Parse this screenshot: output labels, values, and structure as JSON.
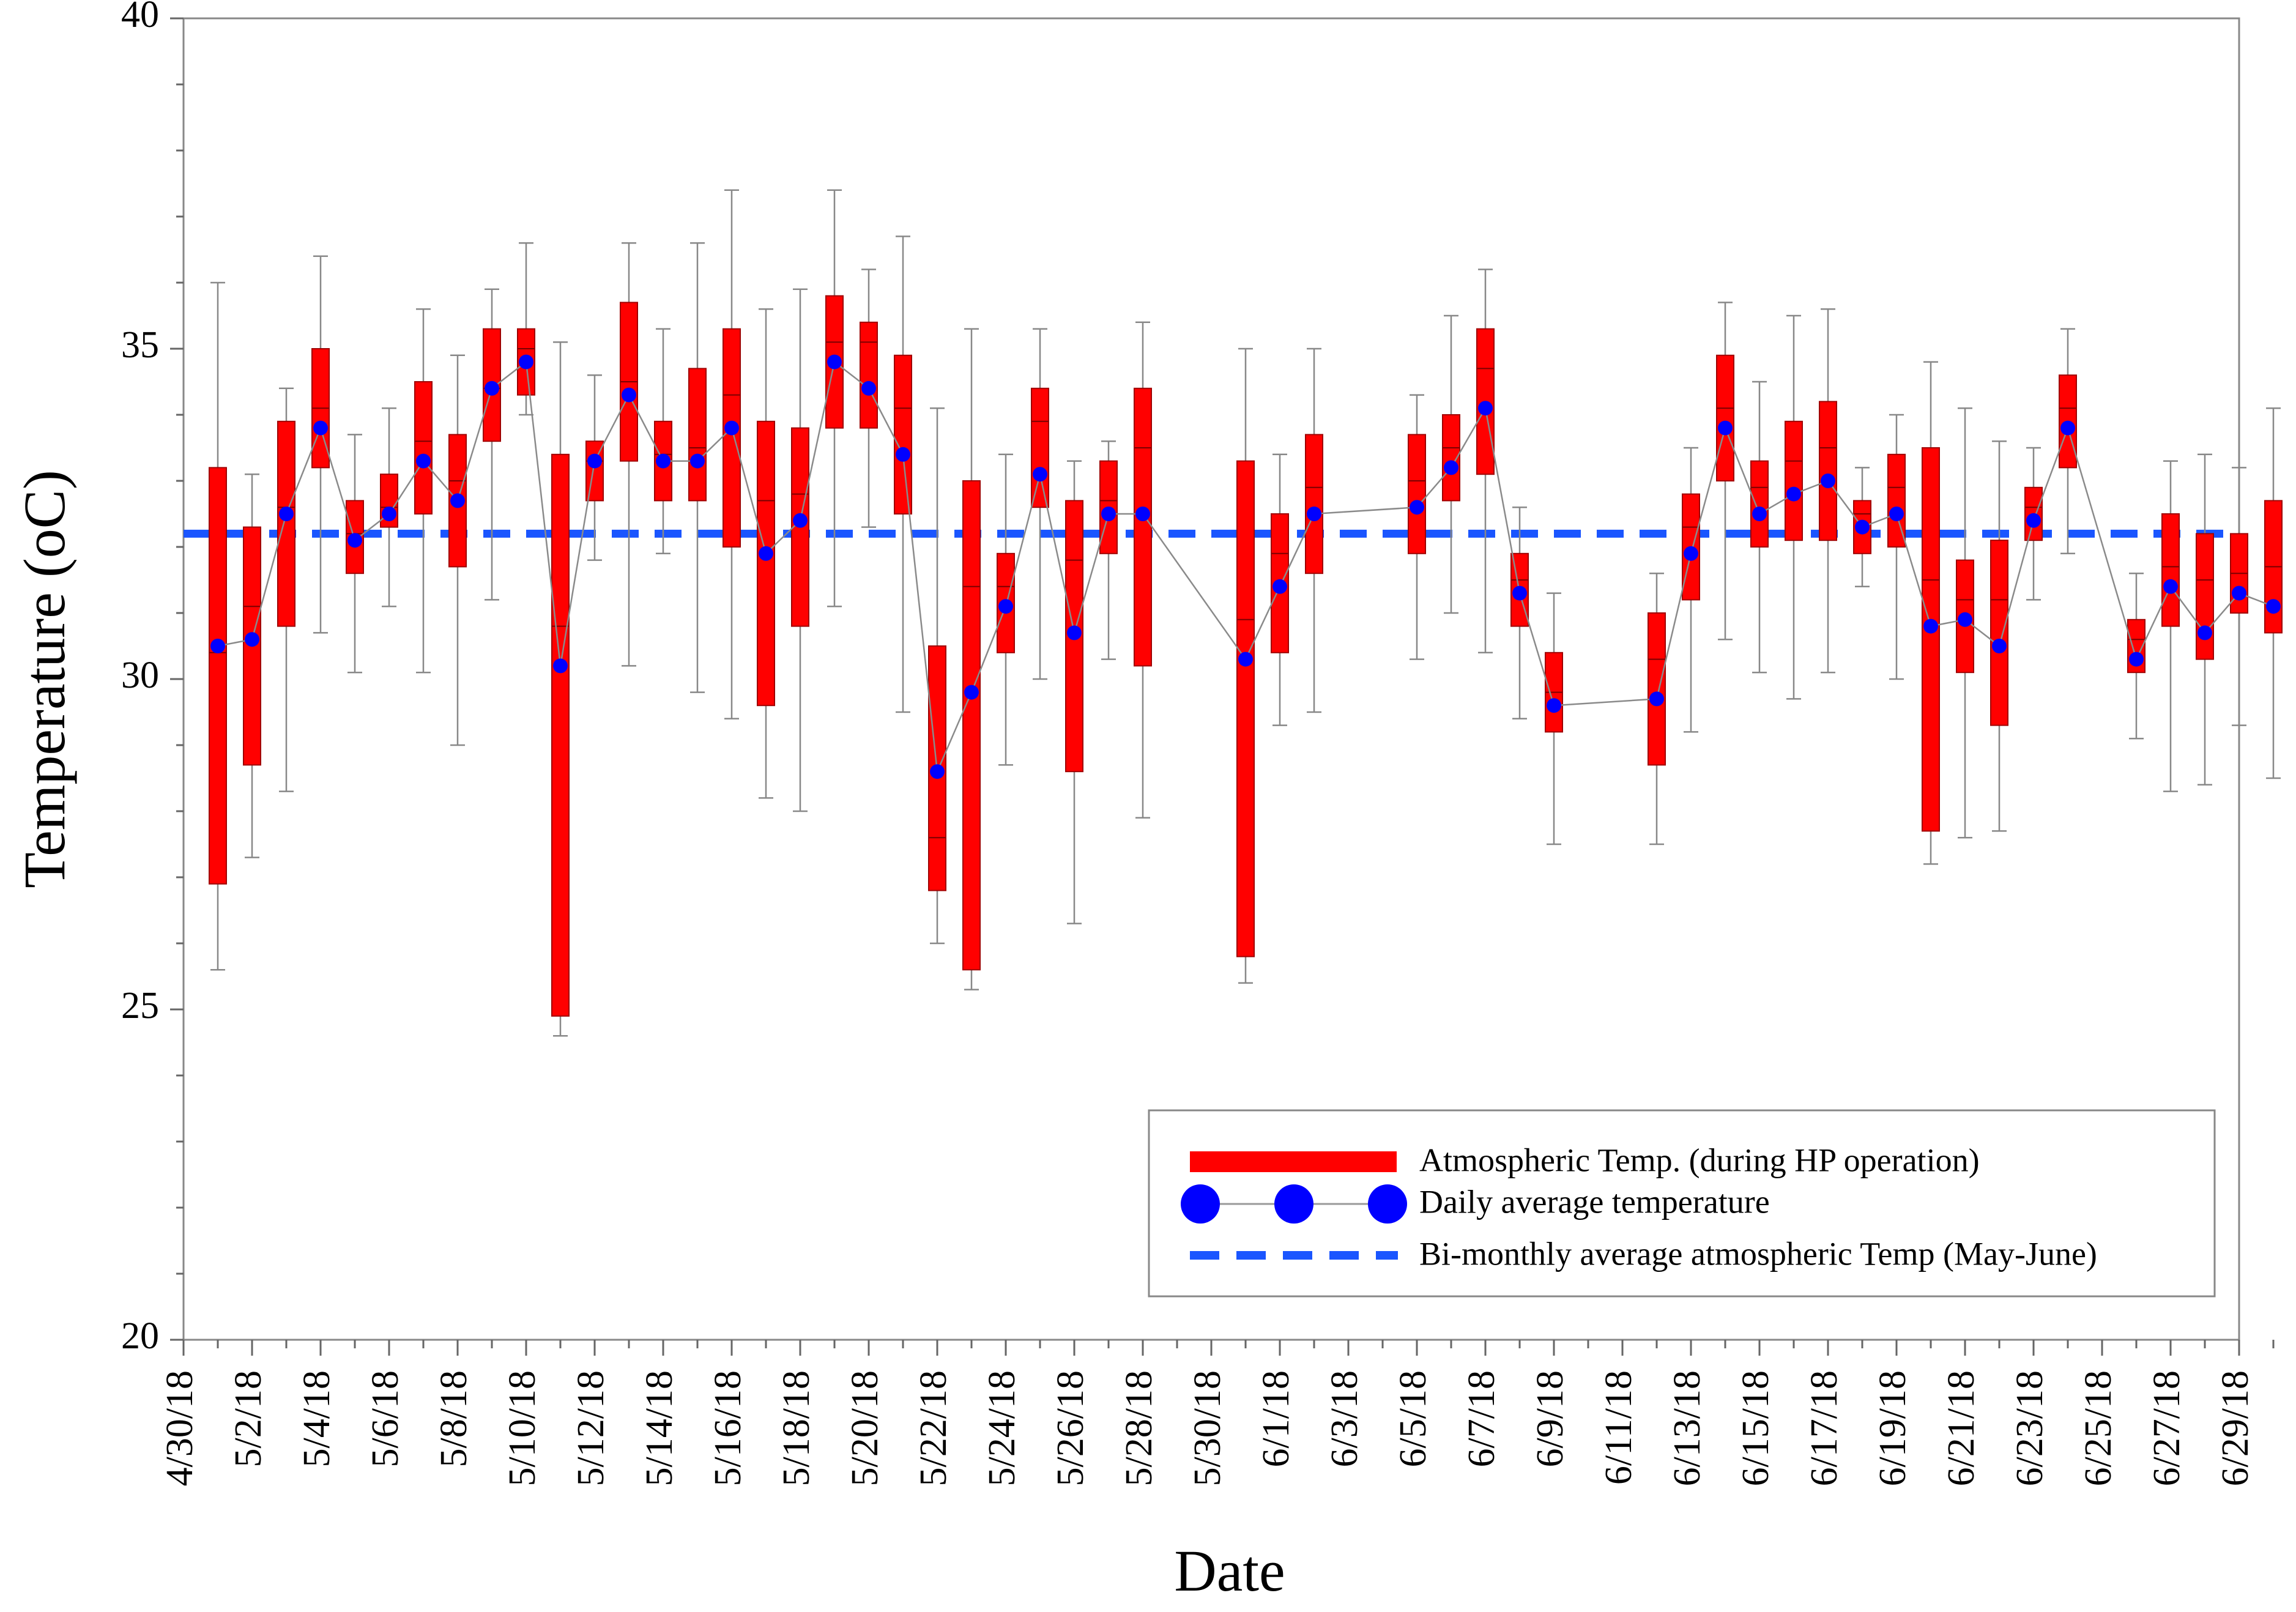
{
  "chart_data": {
    "type": "boxplot",
    "xlabel": "Date",
    "ylabel": "Temperature (oC)",
    "ylim": [
      20,
      40
    ],
    "y_ticks": [
      "20",
      "25",
      "30",
      "35",
      "40"
    ],
    "x_tick_labels": [
      "4/30/18",
      "5/2/18",
      "5/4/18",
      "5/6/18",
      "5/8/18",
      "5/10/18",
      "5/12/18",
      "5/14/18",
      "5/16/18",
      "5/18/18",
      "5/20/18",
      "5/22/18",
      "5/24/18",
      "5/26/18",
      "5/28/18",
      "5/30/18",
      "6/1/18",
      "6/3/18",
      "6/5/18",
      "6/7/18",
      "6/9/18",
      "6/11/18",
      "6/13/18",
      "6/15/18",
      "6/17/18",
      "6/19/18",
      "6/21/18",
      "6/23/18",
      "6/25/18",
      "6/27/18",
      "6/29/18"
    ],
    "bimonthly_average": 32.2,
    "legend": {
      "box": "Atmospheric Temp. (during HP operation)",
      "dots": "Daily average temperature",
      "dashed": "Bi-monthly average atmospheric Temp (May-June)"
    },
    "colors": {
      "box": "#ff0000",
      "dot": "#0000ff",
      "dashed": "#1a55ff"
    },
    "boxes": [
      {
        "day": 1,
        "wlo": 25.6,
        "q1": 26.9,
        "med": 30.4,
        "q3": 33.2,
        "whi": 36.0,
        "mean": 30.5
      },
      {
        "day": 2,
        "wlo": 27.3,
        "q1": 28.7,
        "med": 31.1,
        "q3": 32.3,
        "whi": 33.1,
        "mean": 30.6
      },
      {
        "day": 3,
        "wlo": 28.3,
        "q1": 30.8,
        "med": 32.6,
        "q3": 33.9,
        "whi": 34.4,
        "mean": 32.5
      },
      {
        "day": 4,
        "wlo": 30.7,
        "q1": 33.2,
        "med": 34.1,
        "q3": 35.0,
        "whi": 36.4,
        "mean": 33.8
      },
      {
        "day": 5,
        "wlo": 30.1,
        "q1": 31.6,
        "med": 32.2,
        "q3": 32.7,
        "whi": 33.7,
        "mean": 32.1
      },
      {
        "day": 6,
        "wlo": 31.1,
        "q1": 32.3,
        "med": 32.6,
        "q3": 33.1,
        "whi": 34.1,
        "mean": 32.5
      },
      {
        "day": 7,
        "wlo": 30.1,
        "q1": 32.5,
        "med": 33.6,
        "q3": 34.5,
        "whi": 35.6,
        "mean": 33.3
      },
      {
        "day": 8,
        "wlo": 29.0,
        "q1": 31.7,
        "med": 33.0,
        "q3": 33.7,
        "whi": 34.9,
        "mean": 32.7
      },
      {
        "day": 9,
        "wlo": 31.2,
        "q1": 33.6,
        "med": 34.4,
        "q3": 35.3,
        "whi": 35.9,
        "mean": 34.4
      },
      {
        "day": 10,
        "wlo": 34.0,
        "q1": 34.3,
        "med": 35.0,
        "q3": 35.3,
        "whi": 36.6,
        "mean": 34.8
      },
      {
        "day": 11,
        "wlo": 24.6,
        "q1": 24.9,
        "med": 30.8,
        "q3": 33.4,
        "whi": 35.1,
        "mean": 30.2
      },
      {
        "day": 12,
        "wlo": 31.8,
        "q1": 32.7,
        "med": 33.3,
        "q3": 33.6,
        "whi": 34.6,
        "mean": 33.3
      },
      {
        "day": 13,
        "wlo": 30.2,
        "q1": 33.3,
        "med": 34.5,
        "q3": 35.7,
        "whi": 36.6,
        "mean": 34.3
      },
      {
        "day": 14,
        "wlo": 31.9,
        "q1": 32.7,
        "med": 33.4,
        "q3": 33.9,
        "whi": 35.3,
        "mean": 33.3
      },
      {
        "day": 15,
        "wlo": 29.8,
        "q1": 32.7,
        "med": 33.5,
        "q3": 34.7,
        "whi": 36.6,
        "mean": 33.3
      },
      {
        "day": 16,
        "wlo": 29.4,
        "q1": 32.0,
        "med": 34.3,
        "q3": 35.3,
        "whi": 37.4,
        "mean": 33.8
      },
      {
        "day": 17,
        "wlo": 28.2,
        "q1": 29.6,
        "med": 32.7,
        "q3": 33.9,
        "whi": 35.6,
        "mean": 31.9
      },
      {
        "day": 18,
        "wlo": 28.0,
        "q1": 30.8,
        "med": 32.8,
        "q3": 33.8,
        "whi": 35.9,
        "mean": 32.4
      },
      {
        "day": 19,
        "wlo": 31.1,
        "q1": 33.8,
        "med": 35.1,
        "q3": 35.8,
        "whi": 37.4,
        "mean": 34.8
      },
      {
        "day": 20,
        "wlo": 32.3,
        "q1": 33.8,
        "med": 35.1,
        "q3": 35.4,
        "whi": 36.2,
        "mean": 34.4
      },
      {
        "day": 21,
        "wlo": 29.5,
        "q1": 32.5,
        "med": 34.1,
        "q3": 34.9,
        "whi": 36.7,
        "mean": 33.4
      },
      {
        "day": 22,
        "wlo": 26.0,
        "q1": 26.8,
        "med": 27.6,
        "q3": 30.5,
        "whi": 34.1,
        "mean": 28.6
      },
      {
        "day": 23,
        "wlo": 25.3,
        "q1": 25.6,
        "med": 31.4,
        "q3": 33.0,
        "whi": 35.3,
        "mean": 29.8
      },
      {
        "day": 24,
        "wlo": 28.7,
        "q1": 30.4,
        "med": 31.4,
        "q3": 31.9,
        "whi": 33.4,
        "mean": 31.1
      },
      {
        "day": 25,
        "wlo": 30.0,
        "q1": 32.6,
        "med": 33.9,
        "q3": 34.4,
        "whi": 35.3,
        "mean": 33.1
      },
      {
        "day": 26,
        "wlo": 26.3,
        "q1": 28.6,
        "med": 31.8,
        "q3": 32.7,
        "whi": 33.3,
        "mean": 30.7
      },
      {
        "day": 27,
        "wlo": 30.3,
        "q1": 31.9,
        "med": 32.7,
        "q3": 33.3,
        "whi": 33.6,
        "mean": 32.5
      },
      {
        "day": 28,
        "wlo": 27.9,
        "q1": 30.2,
        "med": 33.5,
        "q3": 34.4,
        "whi": 35.4,
        "mean": 32.5
      },
      {
        "day": 31,
        "wlo": 25.4,
        "q1": 25.8,
        "med": 30.9,
        "q3": 33.3,
        "whi": 35.0,
        "mean": 30.3
      },
      {
        "day": 32,
        "wlo": 29.3,
        "q1": 30.4,
        "med": 31.9,
        "q3": 32.5,
        "whi": 33.4,
        "mean": 31.4
      },
      {
        "day": 33,
        "wlo": 29.5,
        "q1": 31.6,
        "med": 32.9,
        "q3": 33.7,
        "whi": 35.0,
        "mean": 32.5
      },
      {
        "day": 36,
        "wlo": 30.3,
        "q1": 31.9,
        "med": 33.0,
        "q3": 33.7,
        "whi": 34.3,
        "mean": 32.6
      },
      {
        "day": 37,
        "wlo": 31.0,
        "q1": 32.7,
        "med": 33.5,
        "q3": 34.0,
        "whi": 35.5,
        "mean": 33.2
      },
      {
        "day": 38,
        "wlo": 30.4,
        "q1": 33.1,
        "med": 34.7,
        "q3": 35.3,
        "whi": 36.2,
        "mean": 34.1
      },
      {
        "day": 39,
        "wlo": 29.4,
        "q1": 30.8,
        "med": 31.5,
        "q3": 31.9,
        "whi": 32.6,
        "mean": 31.3
      },
      {
        "day": 40,
        "wlo": 27.5,
        "q1": 29.2,
        "med": 29.8,
        "q3": 30.4,
        "whi": 31.3,
        "mean": 29.6
      },
      {
        "day": 43,
        "wlo": 27.5,
        "q1": 28.7,
        "med": 30.3,
        "q3": 31.0,
        "whi": 31.6,
        "mean": 29.7
      },
      {
        "day": 44,
        "wlo": 29.2,
        "q1": 31.2,
        "med": 32.3,
        "q3": 32.8,
        "whi": 33.5,
        "mean": 31.9
      },
      {
        "day": 45,
        "wlo": 30.6,
        "q1": 33.0,
        "med": 34.1,
        "q3": 34.9,
        "whi": 35.7,
        "mean": 33.8
      },
      {
        "day": 46,
        "wlo": 30.1,
        "q1": 32.0,
        "med": 32.9,
        "q3": 33.3,
        "whi": 34.5,
        "mean": 32.5
      },
      {
        "day": 47,
        "wlo": 29.7,
        "q1": 32.1,
        "med": 33.3,
        "q3": 33.9,
        "whi": 35.5,
        "mean": 32.8
      },
      {
        "day": 48,
        "wlo": 30.1,
        "q1": 32.1,
        "med": 33.5,
        "q3": 34.2,
        "whi": 35.6,
        "mean": 33.0
      },
      {
        "day": 49,
        "wlo": 31.4,
        "q1": 31.9,
        "med": 32.5,
        "q3": 32.7,
        "whi": 33.2,
        "mean": 32.3
      },
      {
        "day": 50,
        "wlo": 30.0,
        "q1": 32.0,
        "med": 32.9,
        "q3": 33.4,
        "whi": 34.0,
        "mean": 32.5
      },
      {
        "day": 51,
        "wlo": 27.2,
        "q1": 27.7,
        "med": 31.5,
        "q3": 33.5,
        "whi": 34.8,
        "mean": 30.8
      },
      {
        "day": 52,
        "wlo": 27.6,
        "q1": 30.1,
        "med": 31.2,
        "q3": 31.8,
        "whi": 34.1,
        "mean": 30.9
      },
      {
        "day": 53,
        "wlo": 27.7,
        "q1": 29.3,
        "med": 31.2,
        "q3": 32.1,
        "whi": 33.6,
        "mean": 30.5
      },
      {
        "day": 54,
        "wlo": 31.2,
        "q1": 32.1,
        "med": 32.6,
        "q3": 32.9,
        "whi": 33.5,
        "mean": 32.4
      },
      {
        "day": 55,
        "wlo": 31.9,
        "q1": 33.2,
        "med": 34.1,
        "q3": 34.6,
        "whi": 35.3,
        "mean": 33.8
      },
      {
        "day": 57,
        "wlo": 29.1,
        "q1": 30.1,
        "med": 30.6,
        "q3": 30.9,
        "whi": 31.6,
        "mean": 30.3
      },
      {
        "day": 58,
        "wlo": 28.3,
        "q1": 30.8,
        "med": 31.7,
        "q3": 32.5,
        "whi": 33.3,
        "mean": 31.4
      },
      {
        "day": 59,
        "wlo": 28.4,
        "q1": 30.3,
        "med": 31.5,
        "q3": 32.2,
        "whi": 33.4,
        "mean": 30.7
      },
      {
        "day": 60,
        "wlo": 29.3,
        "q1": 31.0,
        "med": 31.6,
        "q3": 32.2,
        "whi": 33.2,
        "mean": 31.3
      },
      {
        "day": 61,
        "wlo": 28.5,
        "q1": 30.7,
        "med": 31.7,
        "q3": 32.7,
        "whi": 34.1,
        "mean": 31.1
      }
    ]
  }
}
